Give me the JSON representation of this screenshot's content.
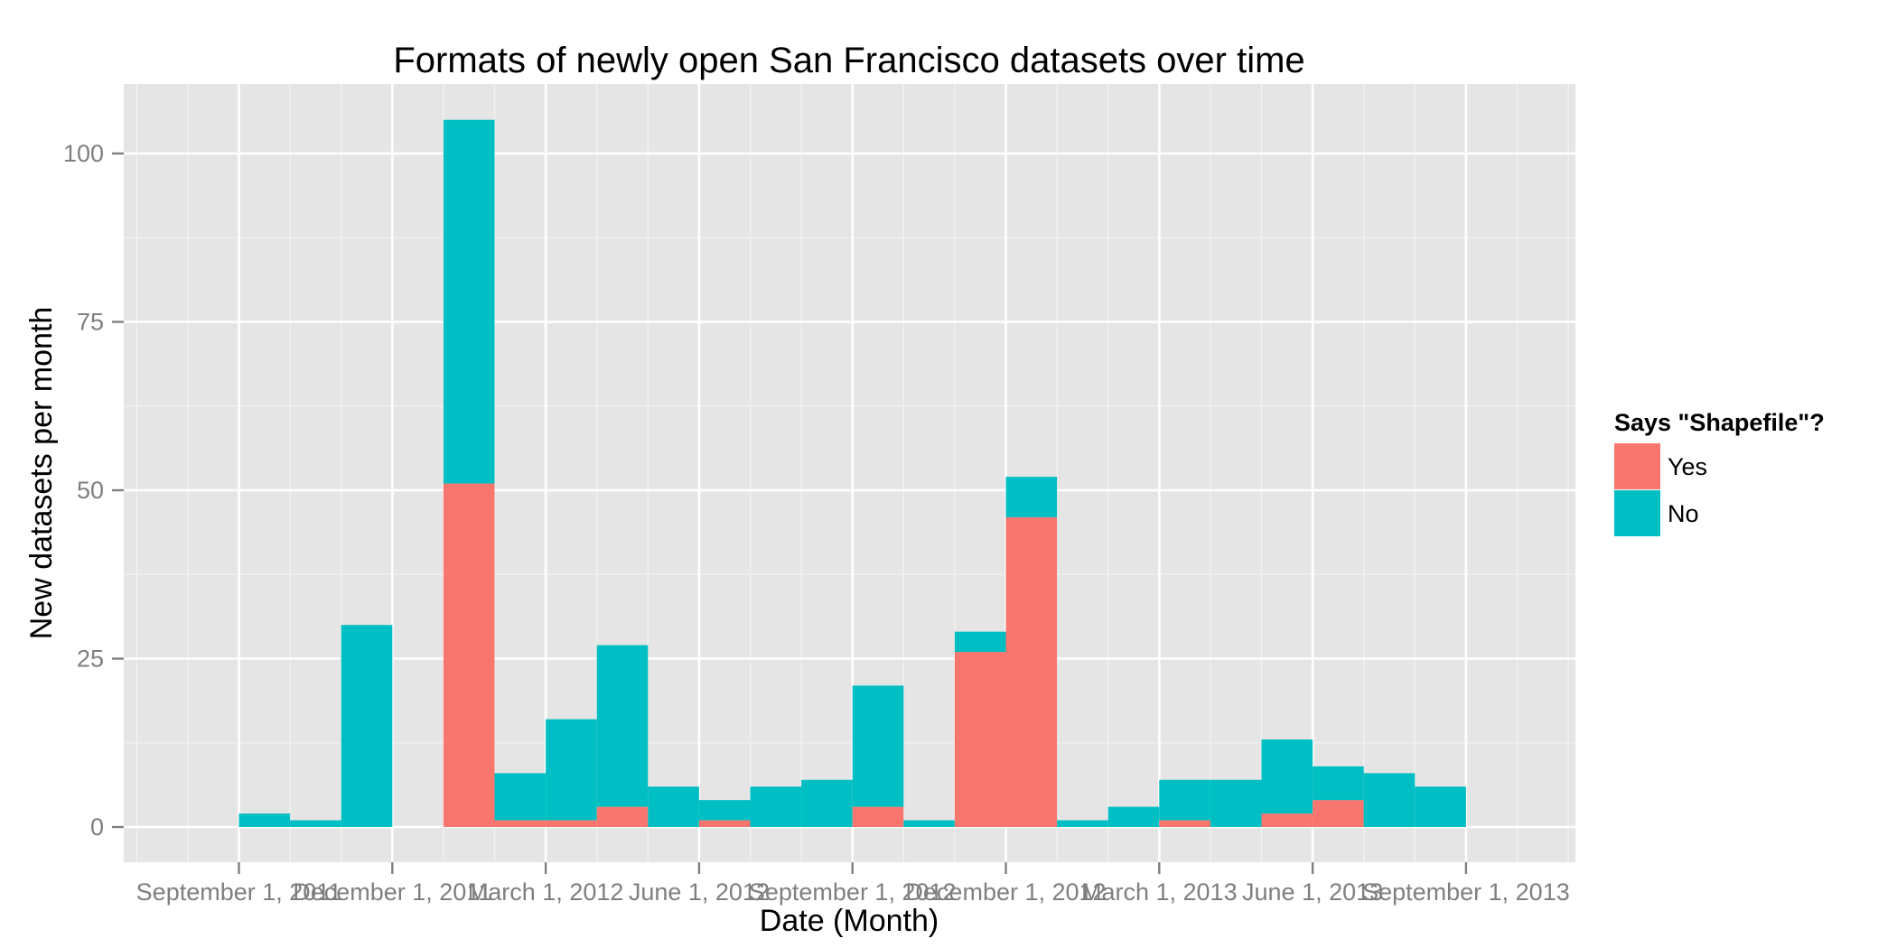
{
  "chart_data": {
    "type": "bar",
    "stacked": true,
    "title": "Formats of newly open San Francisco datasets over time",
    "xlabel": "Date (Month)",
    "ylabel": "New datasets per month",
    "ylim": [
      -5,
      110
    ],
    "yticks": [
      0,
      25,
      50,
      75,
      100
    ],
    "x_tick_labels": [
      "September 1, 2011",
      "December 1, 2011",
      "March 1, 2012",
      "June 1, 2012",
      "September 1, 2012",
      "December 1, 2012",
      "March 1, 2013",
      "June 1, 2013",
      "September 1, 2013"
    ],
    "categories": [
      "2011-09",
      "2011-10",
      "2011-11",
      "2011-12",
      "2012-01",
      "2012-02",
      "2012-03",
      "2012-04",
      "2012-05",
      "2012-06",
      "2012-07",
      "2012-08",
      "2012-09",
      "2012-10",
      "2012-11",
      "2012-12",
      "2013-01",
      "2013-02",
      "2013-03",
      "2013-04",
      "2013-05",
      "2013-06",
      "2013-07",
      "2013-08"
    ],
    "series": [
      {
        "name": "Yes",
        "color": "#F8766D",
        "values": [
          0,
          0,
          0,
          0,
          51,
          1,
          1,
          3,
          0,
          1,
          0,
          0,
          3,
          0,
          26,
          46,
          0,
          0,
          1,
          0,
          2,
          4,
          0,
          0
        ]
      },
      {
        "name": "No",
        "color": "#00BFC4",
        "values": [
          2,
          1,
          30,
          0,
          54,
          7,
          15,
          24,
          6,
          3,
          6,
          7,
          18,
          1,
          3,
          6,
          1,
          3,
          6,
          7,
          11,
          5,
          8,
          6
        ]
      }
    ],
    "grid": true,
    "legend": {
      "title": "Says \"Shapefile\"?",
      "placement": "right"
    }
  }
}
